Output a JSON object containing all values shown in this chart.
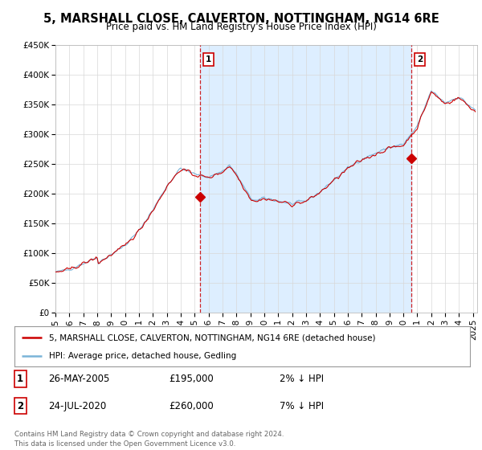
{
  "title": "5, MARSHALL CLOSE, CALVERTON, NOTTINGHAM, NG14 6RE",
  "subtitle": "Price paid vs. HM Land Registry's House Price Index (HPI)",
  "ylim": [
    0,
    450000
  ],
  "yticks": [
    0,
    50000,
    100000,
    150000,
    200000,
    250000,
    300000,
    350000,
    400000,
    450000
  ],
  "ytick_labels": [
    "£0",
    "£50K",
    "£100K",
    "£150K",
    "£200K",
    "£250K",
    "£300K",
    "£350K",
    "£400K",
    "£450K"
  ],
  "xlim_start": 1995.0,
  "xlim_end": 2025.3,
  "hpi_color": "#7ab4d8",
  "price_color": "#cc0000",
  "shade_color": "#ddeeff",
  "marker1_x": 2005.39,
  "marker1_y": 195000,
  "marker2_x": 2020.56,
  "marker2_y": 260000,
  "marker_color": "#cc0000",
  "vline_color": "#cc0000",
  "legend_line1": "5, MARSHALL CLOSE, CALVERTON, NOTTINGHAM, NG14 6RE (detached house)",
  "legend_line2": "HPI: Average price, detached house, Gedling",
  "table_row1_num": "1",
  "table_row1_date": "26-MAY-2005",
  "table_row1_price": "£195,000",
  "table_row1_hpi": "2% ↓ HPI",
  "table_row2_num": "2",
  "table_row2_date": "24-JUL-2020",
  "table_row2_price": "£260,000",
  "table_row2_hpi": "7% ↓ HPI",
  "footer": "Contains HM Land Registry data © Crown copyright and database right 2024.\nThis data is licensed under the Open Government Licence v3.0.",
  "bg_color": "#ffffff",
  "plot_bg_color": "#ffffff",
  "grid_color": "#d8d8d8",
  "title_fontsize": 10.5,
  "subtitle_fontsize": 8.5,
  "tick_fontsize": 7.5,
  "xticks": [
    1995,
    1996,
    1997,
    1998,
    1999,
    2000,
    2001,
    2002,
    2003,
    2004,
    2005,
    2006,
    2007,
    2008,
    2009,
    2010,
    2011,
    2012,
    2013,
    2014,
    2015,
    2016,
    2017,
    2018,
    2019,
    2020,
    2021,
    2022,
    2023,
    2024,
    2025
  ]
}
